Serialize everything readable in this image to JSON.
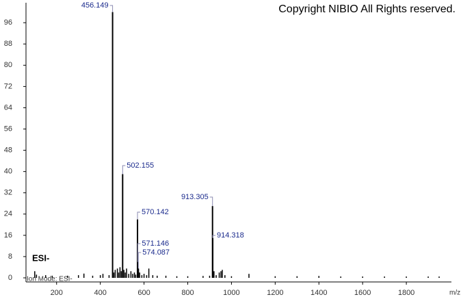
{
  "chart_data": {
    "type": "spectrum",
    "title": "Copyright NIBIO All Rights reserved.",
    "mode_label": "ESI-",
    "footer": "Ion Mode: ESI-",
    "x_label": "m/z",
    "color": "#000000",
    "label_color": "#1a2a8c",
    "xlim": [
      60,
      2000
    ],
    "ylim": [
      0,
      103
    ],
    "xticks": [
      200,
      400,
      600,
      800,
      1000,
      1200,
      1400,
      1600,
      1800
    ],
    "yticks": [
      0,
      8,
      16,
      24,
      32,
      40,
      48,
      56,
      64,
      72,
      80,
      88,
      96
    ],
    "labeled_x": [
      456.149,
      502.155,
      570.142,
      571.146,
      574.087,
      913.305,
      914.318
    ],
    "labeled_values": [
      100,
      39,
      22,
      6,
      3.5,
      27,
      15
    ],
    "x": [
      100,
      108,
      150,
      180,
      250,
      300,
      325,
      365,
      400,
      412,
      440,
      462,
      468,
      478,
      484,
      490,
      496,
      508,
      514,
      520,
      530,
      540,
      548,
      556,
      562,
      580,
      590,
      600,
      612,
      622,
      640,
      660,
      700,
      750,
      800,
      870,
      900,
      920,
      930,
      944,
      952,
      958,
      970,
      1000,
      1080,
      1200,
      1300,
      1400,
      1500,
      1600,
      1700,
      1800,
      1900,
      1950
    ],
    "values": [
      2.5,
      1.2,
      1,
      0.8,
      0.8,
      1,
      1.6,
      0.8,
      1,
      1.5,
      1,
      2,
      3,
      3.5,
      2,
      4,
      2.5,
      3,
      2,
      3.5,
      1.5,
      2.5,
      1.5,
      2,
      1.2,
      2,
      1,
      1.5,
      1,
      3.5,
      1,
      0.8,
      0.8,
      0.6,
      0.6,
      0.7,
      0.8,
      2.5,
      1,
      2,
      2.5,
      3,
      1,
      0.6,
      1.5,
      0.6,
      0.6,
      0.7,
      0.5,
      0.5,
      0.5,
      0.5,
      0.5,
      0.5
    ]
  }
}
